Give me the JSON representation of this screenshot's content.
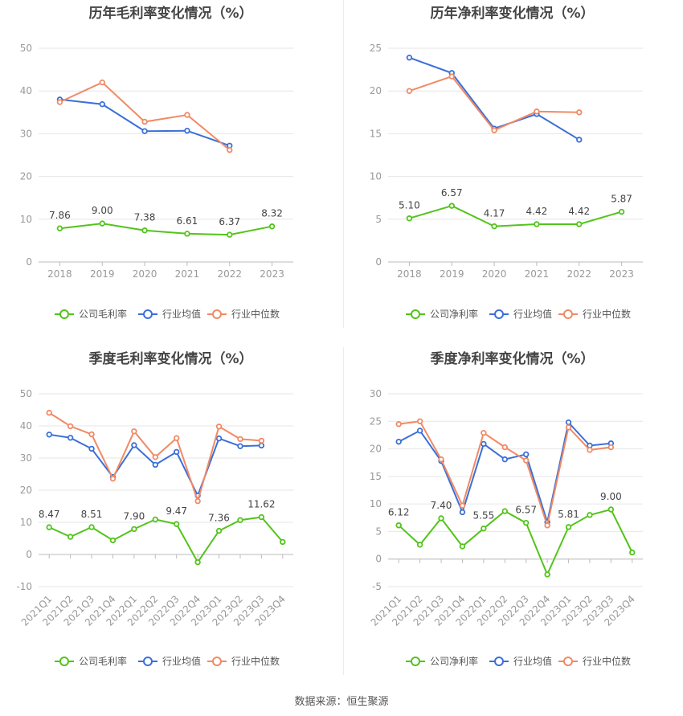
{
  "source_text": "数据来源：恒生聚源",
  "colors": {
    "company": "#52c41a",
    "industry_avg": "#3b6fd8",
    "industry_median": "#f08a65",
    "grid": "#e6e6e6",
    "axis_text": "#999999"
  },
  "chart_data": [
    {
      "type": "line",
      "title": "历年毛利率变化情况（%）",
      "categories": [
        "2018",
        "2019",
        "2020",
        "2021",
        "2022",
        "2023"
      ],
      "ylim": [
        0,
        50
      ],
      "yticks": [
        0,
        10,
        20,
        30,
        40,
        50
      ],
      "series": [
        {
          "name": "公司毛利率",
          "values": [
            7.86,
            9.0,
            7.38,
            6.61,
            6.37,
            8.32
          ],
          "labels": [
            "7.86",
            "9.00",
            "7.38",
            "6.61",
            "6.37",
            "8.32"
          ]
        },
        {
          "name": "行业均值",
          "values": [
            38.0,
            36.9,
            30.6,
            30.7,
            27.2,
            null
          ]
        },
        {
          "name": "行业中位数",
          "values": [
            37.4,
            42.0,
            32.8,
            34.4,
            26.2,
            null
          ]
        }
      ],
      "legend": "bottom",
      "grid": true
    },
    {
      "type": "line",
      "title": "历年净利率变化情况（%）",
      "categories": [
        "2018",
        "2019",
        "2020",
        "2021",
        "2022",
        "2023"
      ],
      "ylim": [
        0,
        25
      ],
      "yticks": [
        0,
        5,
        10,
        15,
        20,
        25
      ],
      "series": [
        {
          "name": "公司净利率",
          "values": [
            5.1,
            6.57,
            4.17,
            4.42,
            4.42,
            5.87
          ],
          "labels": [
            "5.10",
            "6.57",
            "4.17",
            "4.42",
            "4.42",
            "5.87"
          ]
        },
        {
          "name": "行业均值",
          "values": [
            23.9,
            22.1,
            15.6,
            17.3,
            14.3,
            null
          ]
        },
        {
          "name": "行业中位数",
          "values": [
            20.0,
            21.7,
            15.4,
            17.6,
            17.5,
            null
          ]
        }
      ],
      "legend": "bottom",
      "grid": true
    },
    {
      "type": "line",
      "title": "季度毛利率变化情况（%）",
      "categories": [
        "2021Q1",
        "2021Q2",
        "2021Q3",
        "2021Q4",
        "2022Q1",
        "2022Q2",
        "2022Q3",
        "2022Q4",
        "2023Q1",
        "2023Q2",
        "2023Q3",
        "2023Q4"
      ],
      "ylim": [
        -10,
        50
      ],
      "yticks": [
        -10,
        0,
        10,
        20,
        30,
        40,
        50
      ],
      "series": [
        {
          "name": "公司毛利率",
          "values": [
            8.47,
            5.5,
            8.51,
            4.4,
            7.9,
            10.9,
            9.47,
            -2.4,
            7.36,
            10.7,
            11.62,
            3.9
          ],
          "labels": [
            "8.47",
            "",
            "8.51",
            "",
            "7.90",
            "",
            "9.47",
            "",
            "7.36",
            "",
            "11.62",
            ""
          ]
        },
        {
          "name": "行业均值",
          "values": [
            37.3,
            36.3,
            32.9,
            24.1,
            34.0,
            27.9,
            31.9,
            18.3,
            36.1,
            33.7,
            33.9,
            null
          ]
        },
        {
          "name": "行业中位数",
          "values": [
            44.1,
            39.9,
            37.4,
            23.6,
            38.3,
            30.3,
            36.2,
            16.6,
            39.8,
            35.9,
            35.4,
            null
          ]
        }
      ],
      "legend": "bottom",
      "grid": true
    },
    {
      "type": "line",
      "title": "季度净利率变化情况（%）",
      "categories": [
        "2021Q1",
        "2021Q2",
        "2021Q3",
        "2021Q4",
        "2022Q1",
        "2022Q2",
        "2022Q3",
        "2022Q4",
        "2023Q1",
        "2023Q2",
        "2023Q3",
        "2023Q4"
      ],
      "ylim": [
        -5,
        30
      ],
      "yticks": [
        -5,
        0,
        5,
        10,
        15,
        20,
        25,
        30
      ],
      "series": [
        {
          "name": "公司净利率",
          "values": [
            6.12,
            2.6,
            7.4,
            2.3,
            5.55,
            8.7,
            6.57,
            -2.8,
            5.81,
            8.0,
            9.0,
            1.2
          ],
          "labels": [
            "6.12",
            "",
            "7.40",
            "",
            "5.55",
            "",
            "6.57",
            "",
            "5.81",
            "",
            "9.00",
            ""
          ]
        },
        {
          "name": "行业均值",
          "values": [
            21.3,
            23.3,
            17.8,
            8.5,
            20.9,
            18.1,
            19.0,
            6.7,
            24.8,
            20.6,
            21.0,
            null
          ]
        },
        {
          "name": "行业中位数",
          "values": [
            24.5,
            25.0,
            18.1,
            9.7,
            22.9,
            20.3,
            17.9,
            6.1,
            23.9,
            19.8,
            20.3,
            null
          ]
        }
      ],
      "legend": "bottom",
      "grid": true
    }
  ]
}
